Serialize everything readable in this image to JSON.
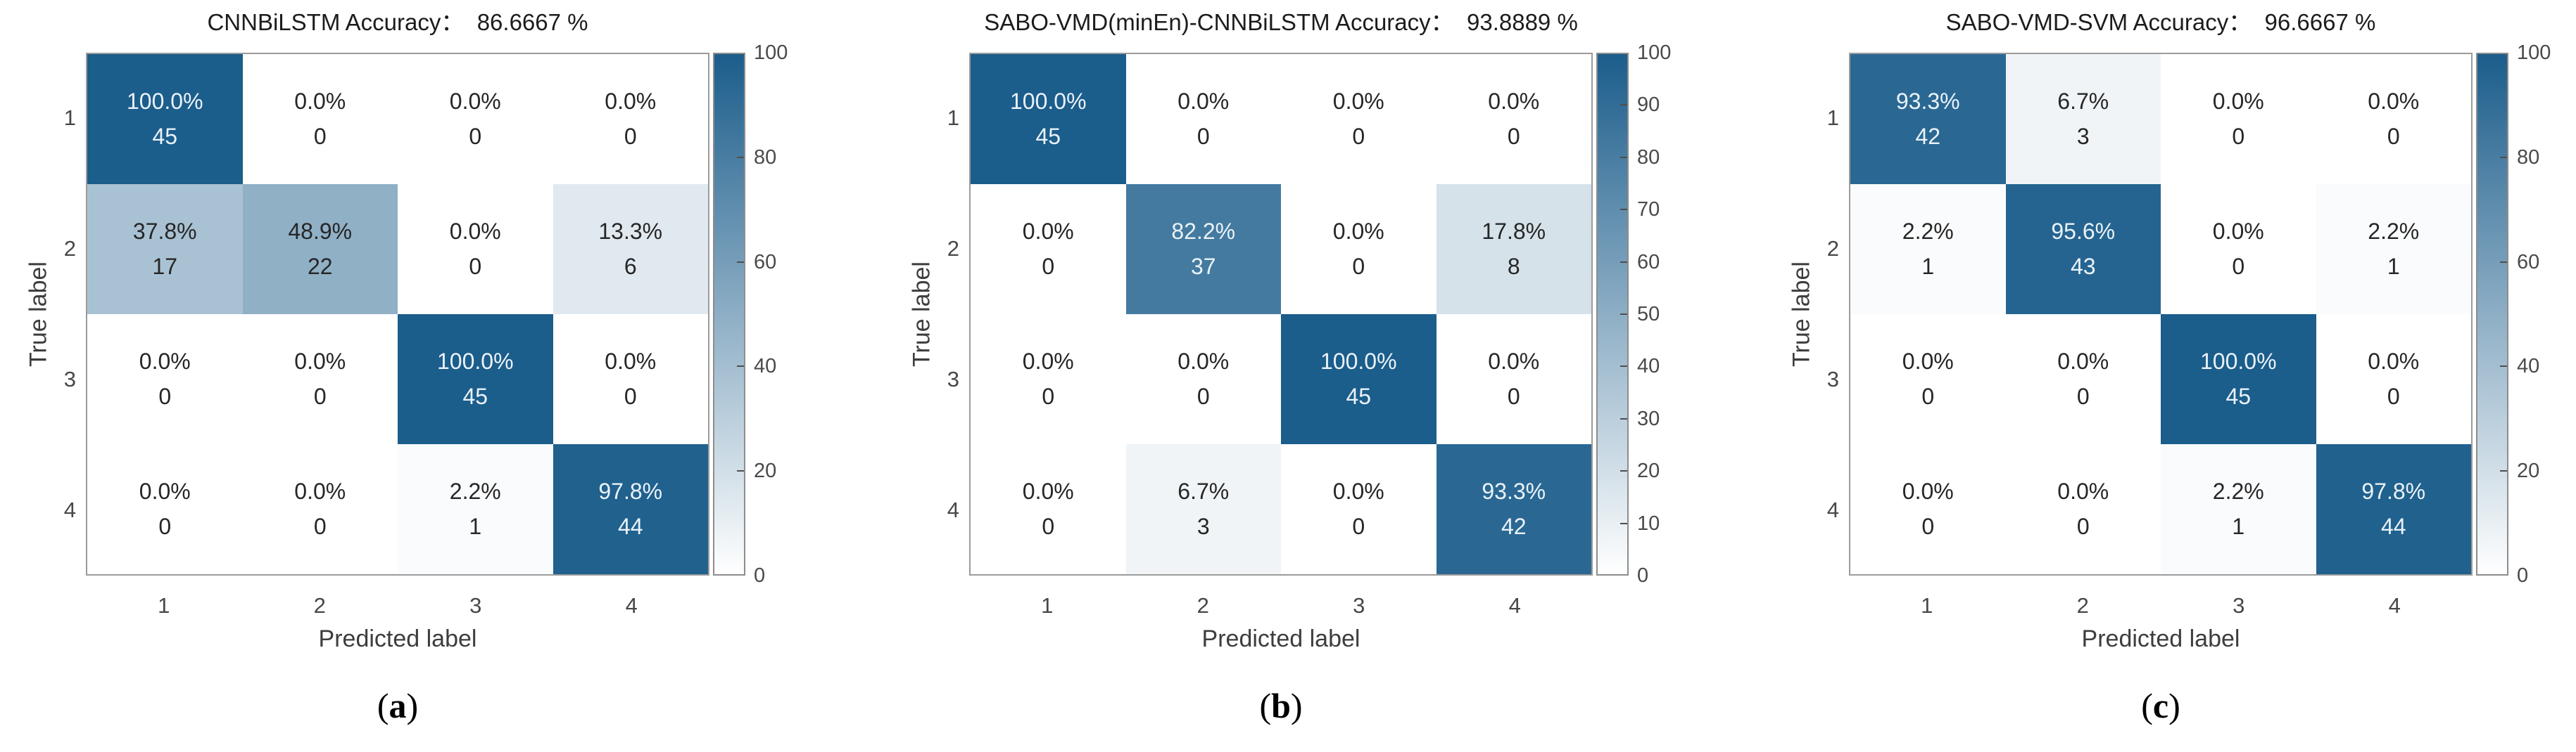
{
  "style": {
    "colormap_low": "#ffffff",
    "colormap_high": "#1b5d8b",
    "cell_text_on_dark": "#eaf2f8",
    "cell_text_on_light": "#262626"
  },
  "chart_data": [
    {
      "type": "heatmap",
      "title": "CNNBiLSTM Accuracy：  86.6667 %",
      "model": "CNNBiLSTM",
      "accuracy_percent": 86.6667,
      "caption": {
        "open": "(",
        "letter": "a",
        "close": ")"
      },
      "xlabel": "Predicted label",
      "ylabel": "True label",
      "x_ticks": [
        "1",
        "2",
        "3",
        "4"
      ],
      "y_ticks": [
        "1",
        "2",
        "3",
        "4"
      ],
      "colorbar": {
        "min": 0,
        "max": 100,
        "ticks": [
          0,
          20,
          40,
          60,
          80,
          100
        ]
      },
      "cells_percent": [
        [
          100.0,
          0.0,
          0.0,
          0.0
        ],
        [
          37.8,
          48.9,
          0.0,
          13.3
        ],
        [
          0.0,
          0.0,
          100.0,
          0.0
        ],
        [
          0.0,
          0.0,
          2.2,
          97.8
        ]
      ],
      "cells_count": [
        [
          45,
          0,
          0,
          0
        ],
        [
          17,
          22,
          0,
          6
        ],
        [
          0,
          0,
          45,
          0
        ],
        [
          0,
          0,
          1,
          44
        ]
      ]
    },
    {
      "type": "heatmap",
      "title": "SABO-VMD(minEn)-CNNBiLSTM Accuracy：  93.8889 %",
      "model": "SABO-VMD(minEn)-CNNBiLSTM",
      "accuracy_percent": 93.8889,
      "caption": {
        "open": "(",
        "letter": "b",
        "close": ")"
      },
      "xlabel": "Predicted label",
      "ylabel": "True label",
      "x_ticks": [
        "1",
        "2",
        "3",
        "4"
      ],
      "y_ticks": [
        "1",
        "2",
        "3",
        "4"
      ],
      "colorbar": {
        "min": 0,
        "max": 100,
        "ticks": [
          0,
          10,
          20,
          30,
          40,
          50,
          60,
          70,
          80,
          90,
          100
        ]
      },
      "cells_percent": [
        [
          100.0,
          0.0,
          0.0,
          0.0
        ],
        [
          0.0,
          82.2,
          0.0,
          17.8
        ],
        [
          0.0,
          0.0,
          100.0,
          0.0
        ],
        [
          0.0,
          6.7,
          0.0,
          93.3
        ]
      ],
      "cells_count": [
        [
          45,
          0,
          0,
          0
        ],
        [
          0,
          37,
          0,
          8
        ],
        [
          0,
          0,
          45,
          0
        ],
        [
          0,
          3,
          0,
          42
        ]
      ]
    },
    {
      "type": "heatmap",
      "title": "SABO-VMD-SVM Accuracy：  96.6667 %",
      "model": "SABO-VMD-SVM",
      "accuracy_percent": 96.6667,
      "caption": {
        "open": "(",
        "letter": "c",
        "close": ")"
      },
      "xlabel": "Predicted label",
      "ylabel": "True label",
      "x_ticks": [
        "1",
        "2",
        "3",
        "4"
      ],
      "y_ticks": [
        "1",
        "2",
        "3",
        "4"
      ],
      "colorbar": {
        "min": 0,
        "max": 100,
        "ticks": [
          0,
          20,
          40,
          60,
          80,
          100
        ]
      },
      "cells_percent": [
        [
          93.3,
          6.7,
          0.0,
          0.0
        ],
        [
          2.2,
          95.6,
          0.0,
          2.2
        ],
        [
          0.0,
          0.0,
          100.0,
          0.0
        ],
        [
          0.0,
          0.0,
          2.2,
          97.8
        ]
      ],
      "cells_count": [
        [
          42,
          3,
          0,
          0
        ],
        [
          1,
          43,
          0,
          1
        ],
        [
          0,
          0,
          45,
          0
        ],
        [
          0,
          0,
          1,
          44
        ]
      ]
    }
  ]
}
